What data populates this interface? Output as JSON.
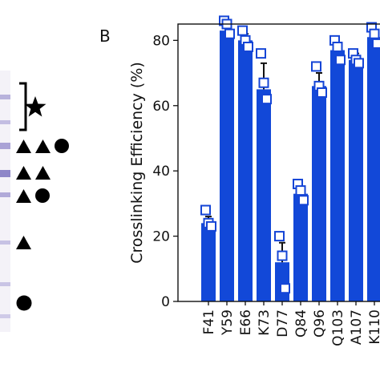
{
  "panel_label": "B",
  "colors": {
    "bar": "#1248d8",
    "marker": "#1545d6",
    "axis": "#111111",
    "gel_bg": "#f4f2f8",
    "gel_band": "#8e86c8"
  },
  "gel_symbols": [
    {
      "row": 1,
      "icons": [
        "bracket-icon",
        "star-icon"
      ]
    },
    {
      "row": 2,
      "icons": [
        "triangle-icon",
        "triangle-icon",
        "circle-icon"
      ]
    },
    {
      "row": 3,
      "icons": [
        "triangle-icon",
        "triangle-icon"
      ]
    },
    {
      "row": 4,
      "icons": [
        "triangle-icon",
        "circle-icon"
      ]
    },
    {
      "row": 5,
      "icons": [
        "triangle-icon"
      ]
    },
    {
      "row": 6,
      "icons": [
        "circle-icon"
      ]
    }
  ],
  "chart_data": {
    "type": "bar",
    "title": "",
    "xlabel": "",
    "ylabel": "Crosslinking Efficiency (%)",
    "ylim": [
      0,
      85
    ],
    "yticks": [
      0,
      20,
      40,
      60,
      80
    ],
    "grid": false,
    "categories": [
      "F41",
      "Y59",
      "E66",
      "K73",
      "D77",
      "Q84",
      "Q96",
      "Q103",
      "A107",
      "K110"
    ],
    "values": [
      24,
      83,
      80,
      65,
      12,
      33,
      66,
      77,
      74,
      81
    ],
    "error": [
      2,
      2,
      2,
      8,
      6,
      2,
      4,
      2,
      2,
      2
    ],
    "points": [
      [
        28,
        24,
        23
      ],
      [
        86,
        85,
        82
      ],
      [
        83,
        80,
        78
      ],
      [
        76,
        67,
        62
      ],
      [
        20,
        14,
        4
      ],
      [
        36,
        34,
        31
      ],
      [
        72,
        66,
        64
      ],
      [
        80,
        78,
        74
      ],
      [
        76,
        74,
        73
      ],
      [
        84,
        82,
        79
      ]
    ]
  }
}
